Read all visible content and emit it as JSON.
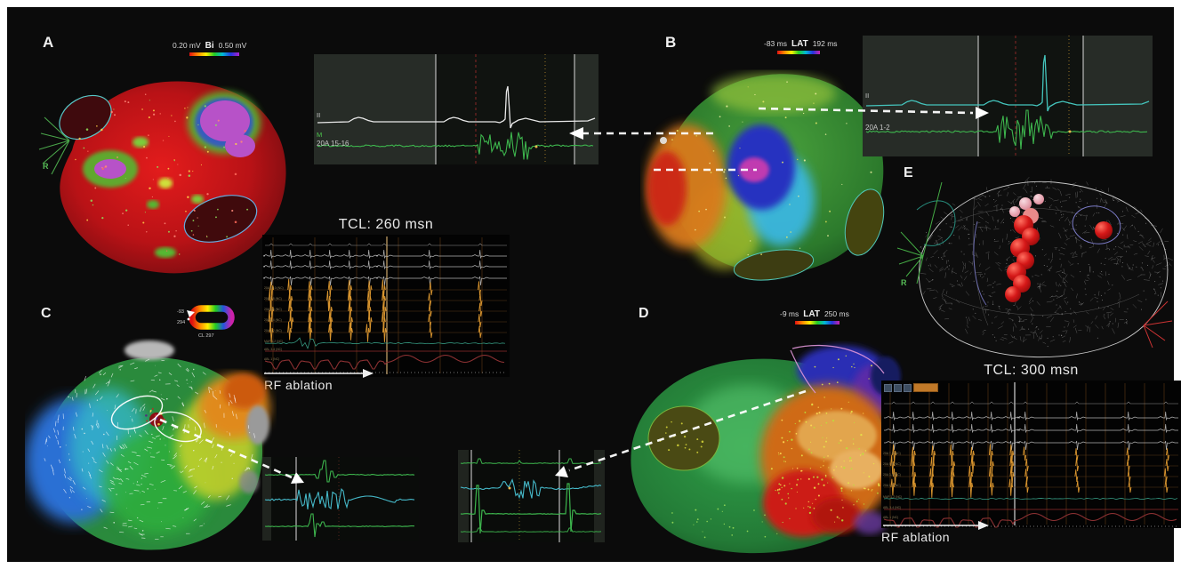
{
  "panels": {
    "a": {
      "label": "A",
      "scale_min": "0.20 mV",
      "scale_name": "Bi",
      "scale_max": "0.50 mV",
      "catheter": "R"
    },
    "b": {
      "label": "B",
      "scale_min": "-83 ms",
      "scale_name": "LAT",
      "scale_max": "192 ms"
    },
    "c": {
      "label": "C",
      "ring_top": "-93",
      "ring_bottom": "294",
      "ring_caption": "CL 297"
    },
    "d": {
      "label": "D",
      "scale_min": "-9 ms",
      "scale_name": "LAT",
      "scale_max": "250 ms"
    },
    "e": {
      "label": "E",
      "catheter": "R"
    }
  },
  "ecg_top_mid": {
    "lead1": "II",
    "lead2": "M",
    "lead3": "20A 15-16"
  },
  "ecg_top_right": {
    "lead1": "II",
    "lead2": "20A 1-2"
  },
  "egm_center": {
    "title": "TCL: 260 msn",
    "caption": "RF ablation",
    "channels": [
      "20A 9-10 (NC)",
      "20A 7-8 (NC)",
      "20A 5-6 (NC)",
      "20A 3-4 (NC)",
      "20A 1-2 (NC)",
      "MAP 1-2 (NC)",
      "ABL 3-4 (NC)",
      "ABL 1 (NC)"
    ]
  },
  "egm_bottom": {
    "title": "TCL: 300 msn",
    "caption": "RF ablation",
    "channels": [
      "20A 7-8 (NC)",
      "20A 5-6 (NC)",
      "20A 3-4 (NC)",
      "20A 1-2 (NC)",
      "MAP 1-2 (NC)",
      "ABL 3-4 (NC)",
      "ABL 1 (NC)"
    ]
  },
  "colors": {
    "dashed_arrow": "#ffffff",
    "voltage_low": "#e01010",
    "voltage_high": "#aa22cc"
  }
}
